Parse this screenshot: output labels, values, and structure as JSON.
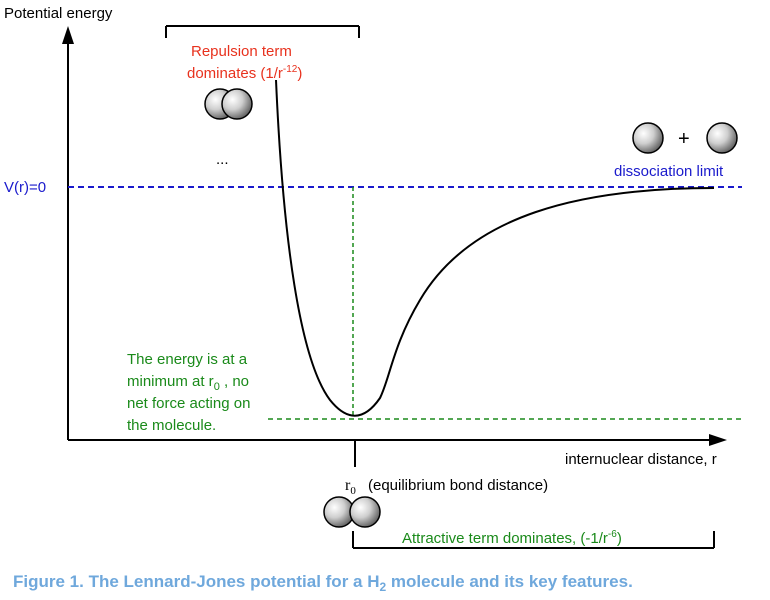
{
  "axes": {
    "y_label": "Potential energy",
    "x_label": "internuclear distance, r",
    "zero_label": "V(r)=0"
  },
  "repulsion": {
    "line1": "Repulsion term",
    "line2_prefix": "dominates (1/r",
    "line2_exp": "-12",
    "line2_suffix": ")"
  },
  "ellipsis": "...",
  "dissociation": {
    "label": "dissociation limit",
    "plus": "+"
  },
  "minimum_note": {
    "line1": "The energy is at a",
    "line2_prefix": "minimum at r",
    "line2_sub": "0",
    "line2_suffix": " , no",
    "line3": "net force acting on",
    "line4": "the molecule."
  },
  "r0": {
    "symbol": "r",
    "sub": "0",
    "desc": "(equilibrium bond distance)"
  },
  "attractive": {
    "prefix": "Attractive term dominates,  (-1/r",
    "exp": "-6",
    "suffix": ")"
  },
  "caption": {
    "prefix": "Figure 1. The Lennard-Jones potential for a H",
    "sub": "2",
    "suffix": " molecule and its key features."
  },
  "colors": {
    "axis": "#000000",
    "curve": "#000000",
    "zero_line": "#1a1acc",
    "zero_label": "#1a1acc",
    "repulsion": "#e8321e",
    "green": "#1a8a1a",
    "caption": "#6fa8dc"
  }
}
